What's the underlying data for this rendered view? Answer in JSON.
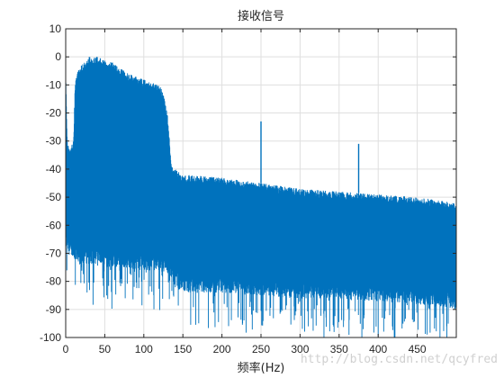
{
  "chart_data": {
    "type": "line",
    "title": "接收信号",
    "xlabel": "频率(Hz)",
    "ylabel": "",
    "xlim": [
      0,
      500
    ],
    "ylim": [
      -100,
      10
    ],
    "grid": true,
    "legend": "none",
    "line_color": "#0072BD",
    "x_ticks": [
      0,
      50,
      100,
      150,
      200,
      250,
      300,
      350,
      400,
      450
    ],
    "x_tick_labels": [
      "0",
      "50",
      "100",
      "150",
      "200",
      "250",
      "300",
      "350",
      "400",
      "450"
    ],
    "y_ticks": [
      10,
      0,
      -10,
      -20,
      -30,
      -40,
      -50,
      -60,
      -70,
      -80,
      -90,
      -100
    ],
    "y_tick_labels": [
      "10",
      "0",
      "-10",
      "-20",
      "-30",
      "-40",
      "-50",
      "-60",
      "-70",
      "-80",
      "-90",
      "-100"
    ],
    "series": [
      {
        "x": [
          0,
          2,
          5,
          10,
          12,
          15,
          20,
          30,
          40,
          50,
          60,
          70,
          80,
          90,
          100,
          110,
          120,
          125,
          130,
          133,
          135,
          138,
          140,
          150,
          200,
          250,
          300,
          350,
          400,
          450,
          500
        ],
        "upper": [
          -5,
          -30,
          -33,
          -30,
          -10,
          -5,
          -3,
          0,
          0,
          -1,
          -2,
          -4,
          -6,
          -7,
          -8,
          -9,
          -10,
          -13,
          -20,
          -30,
          -38,
          -40,
          -40,
          -42,
          -43,
          -45,
          -47,
          -48,
          -49,
          -50,
          -52
        ],
        "lower": [
          -65,
          -68,
          -68,
          -70,
          -70,
          -72,
          -72,
          -72,
          -72,
          -73,
          -73,
          -73,
          -73,
          -74,
          -74,
          -74,
          -74,
          -75,
          -75,
          -76,
          -78,
          -80,
          -80,
          -82,
          -82,
          -83,
          -84,
          -84,
          -85,
          -86,
          -88
        ],
        "spikes": [
          {
            "x": 250,
            "y": -23
          },
          {
            "x": 375,
            "y": -31
          }
        ]
      }
    ]
  },
  "watermark": "http://blog.csdn.net/qcyfred"
}
